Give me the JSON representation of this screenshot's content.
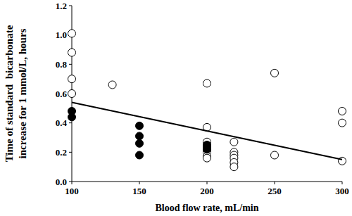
{
  "chart_data": {
    "type": "scatter",
    "xlabel": "Blood flow rate, mL/min",
    "ylabel": [
      "Time of standard  bicarbonate",
      "increase for 1 mmol/L, hours"
    ],
    "xlim": [
      100,
      300
    ],
    "xticks": [
      100,
      150,
      200,
      250,
      300
    ],
    "ylim": [
      0,
      1.2
    ],
    "yticks": [
      {
        "value": 0,
        "label": "0.0"
      },
      0.2,
      0.4,
      0.6,
      0.8,
      {
        "value": 1,
        "label": "1.0"
      },
      1.2
    ],
    "grid": false,
    "series": [
      {
        "type": "scatter",
        "marker": "circle-open",
        "color": "#000000",
        "x": [
          100,
          100,
          100,
          100,
          130,
          200,
          200,
          200,
          200,
          200,
          200,
          200,
          200,
          220,
          220,
          220,
          220,
          220,
          220,
          250,
          250,
          300,
          300,
          300
        ],
        "values": [
          1.01,
          0.88,
          0.7,
          0.6,
          0.66,
          0.67,
          0.37,
          0.27,
          0.24,
          0.22,
          0.2,
          0.17,
          0.16,
          0.27,
          0.2,
          0.18,
          0.16,
          0.13,
          0.1,
          0.74,
          0.18,
          0.48,
          0.4,
          0.14
        ]
      },
      {
        "type": "scatter",
        "marker": "circle-filled",
        "color": "#000000",
        "x": [
          100,
          100,
          150,
          150,
          150,
          150,
          200,
          200,
          200
        ],
        "values": [
          0.48,
          0.44,
          0.38,
          0.31,
          0.26,
          0.18,
          0.25,
          0.23,
          0.22
        ]
      },
      {
        "type": "line",
        "line_style": "solid",
        "color": "#000000",
        "x": [
          100,
          300
        ],
        "values": [
          0.54,
          0.15
        ]
      }
    ]
  }
}
